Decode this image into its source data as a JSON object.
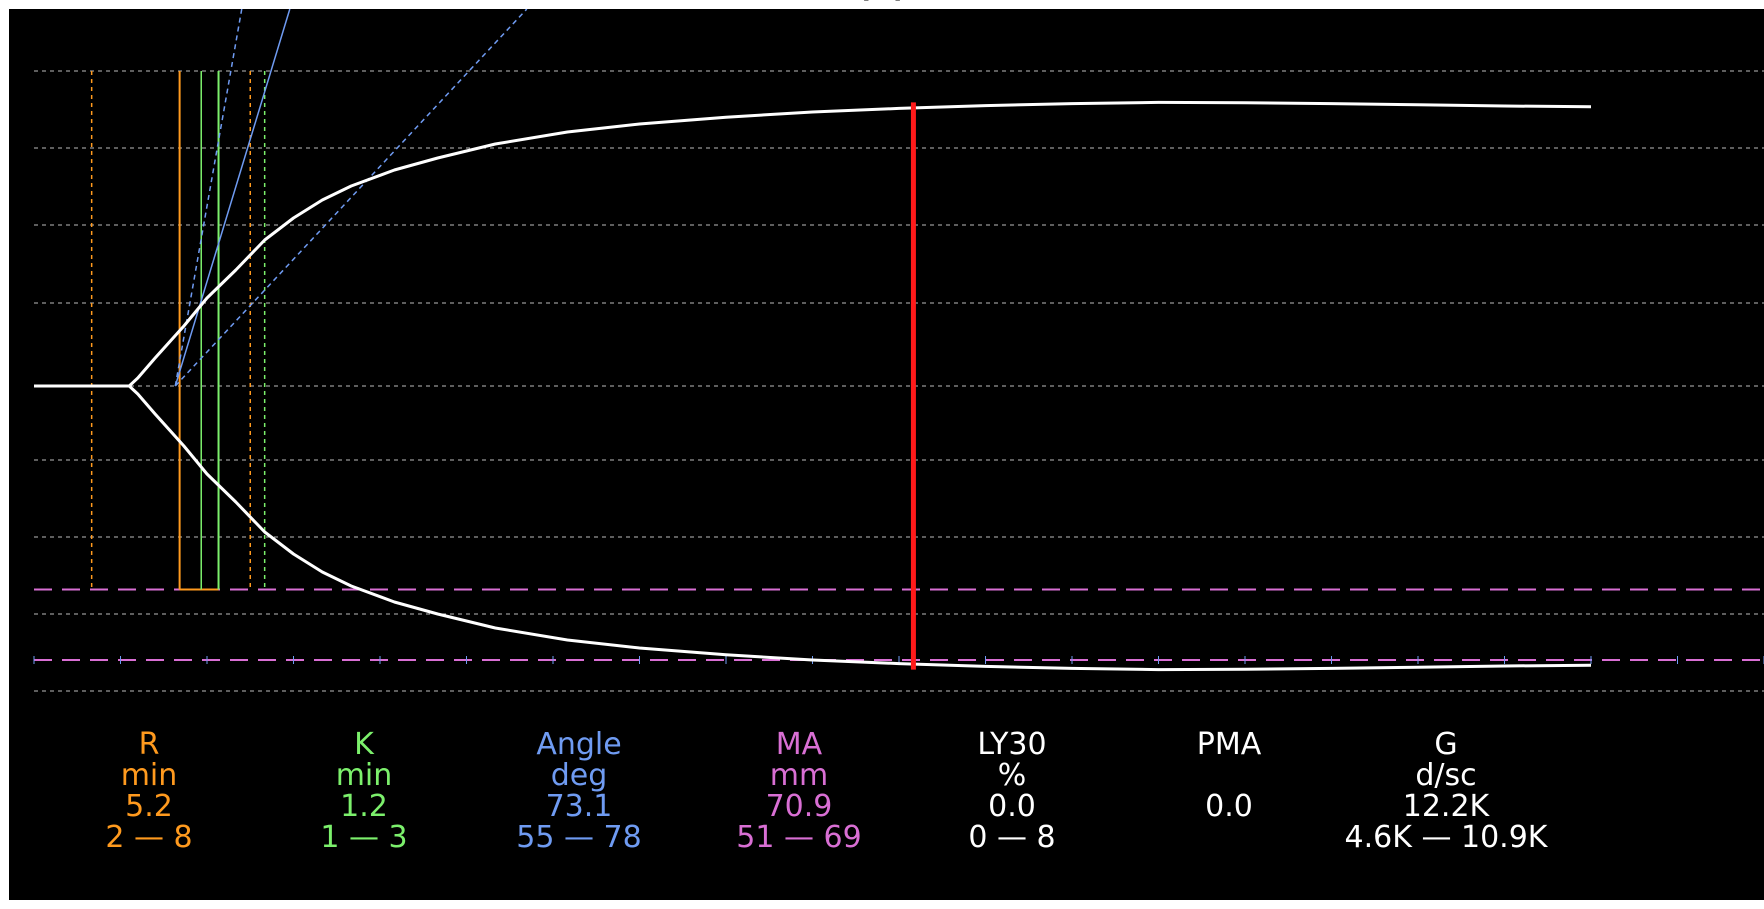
{
  "title": "(      )",
  "chart_data": {
    "type": "line",
    "title": "",
    "grid": true,
    "xrange_min": [
      0,
      60
    ],
    "amplitude_range_mm": [
      -80,
      80
    ],
    "trace": {
      "t": [
        0,
        3.3,
        3.6,
        4.2,
        5.2,
        6.0,
        7.0,
        8.0,
        9.0,
        10.0,
        11.0,
        12.5,
        14.0,
        16.0,
        18.5,
        21.0,
        24.0,
        27.0,
        30.0,
        33.0,
        36.0,
        39.0,
        42.0,
        45.0,
        48.0,
        51.0,
        54.0
      ],
      "amplitude": [
        0,
        0,
        2,
        7,
        15,
        22,
        29,
        36.5,
        42,
        46.5,
        50,
        54,
        57,
        60.5,
        63.5,
        65.5,
        67.2,
        68.5,
        69.4,
        70.1,
        70.6,
        70.9,
        70.8,
        70.6,
        70.3,
        70.0,
        69.8
      ]
    },
    "reference_lines": {
      "R_min": 5.2,
      "R_range": [
        2,
        8
      ],
      "K_min": 1.2,
      "K_range": [
        1,
        3
      ],
      "Angle_deg": 73.1,
      "Angle_range": [
        55,
        78
      ],
      "MA_mm": 70.9,
      "MA_range": [
        51,
        69
      ],
      "ma_time_min": 30.5
    },
    "parameters": [
      {
        "name": "R",
        "unit": "min",
        "value": "5.2",
        "range": "2 — 8",
        "color": "#ff9a1e"
      },
      {
        "name": "K",
        "unit": "min",
        "value": "1.2",
        "range": "1 — 3",
        "color": "#7cf06c"
      },
      {
        "name": "Angle",
        "unit": "deg",
        "value": "73.1",
        "range": "55 — 78",
        "color": "#6f9bf2"
      },
      {
        "name": "MA",
        "unit": "mm",
        "value": "70.9",
        "range": "51 — 69",
        "color": "#d96fd4"
      },
      {
        "name": "LY30",
        "unit": "%",
        "value": "0.0",
        "range": "0 — 8",
        "color": "#ffffff"
      },
      {
        "name": "PMA",
        "unit": "",
        "value": "0.0",
        "range": "",
        "color": "#ffffff"
      },
      {
        "name": "G",
        "unit": "d/sc",
        "value": "12.2K",
        "range": "4.6K — 10.9K",
        "color": "#ffffff"
      }
    ]
  }
}
